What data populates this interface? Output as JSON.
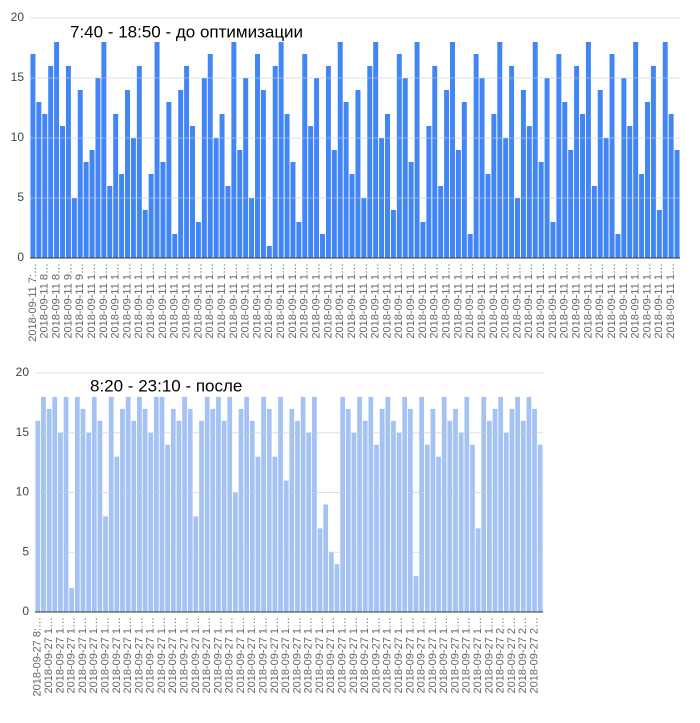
{
  "chart_data": [
    {
      "type": "bar",
      "title": "7:40 - 18:50 - до оптимизации",
      "color": "#4285f4",
      "grid": true,
      "ylim": [
        0,
        20
      ],
      "yticks": [
        0,
        5,
        10,
        15,
        20
      ],
      "categories": [
        "2018-09-11 7:…",
        null,
        "2018-09-11 8…",
        null,
        "2018-09-11 8…",
        null,
        "2018-09-11 9…",
        null,
        "2018-09-11 9…",
        null,
        "2018-09-11 1…",
        null,
        "2018-09-11 1…",
        null,
        "2018-09-11 1…",
        null,
        "2018-09-11 1…",
        null,
        "2018-09-11 1…",
        null,
        "2018-09-11 1…",
        null,
        "2018-09-11 1…",
        null,
        "2018-09-11 1…",
        null,
        "2018-09-11 1…",
        null,
        "2018-09-11 1…",
        null,
        "2018-09-11 1…",
        null,
        "2018-09-11 1…",
        null,
        "2018-09-11 1…",
        null,
        "2018-09-11 1…",
        null,
        "2018-09-11 1…",
        null,
        "2018-09-11 1…",
        null,
        "2018-09-11 1…",
        null,
        "2018-09-11 1…",
        null,
        "2018-09-11 1…",
        null,
        "2018-09-11 1…",
        null,
        "2018-09-11 1…",
        null,
        "2018-09-11 1…",
        null,
        "2018-09-11 1…",
        null,
        "2018-09-11 1…",
        null,
        "2018-09-11 1…",
        null,
        "2018-09-11 1…",
        null,
        "2018-09-11 1…",
        null,
        "2018-09-11 1…",
        null,
        "2018-09-11 1…",
        null,
        "2018-09-11 1…",
        null,
        "2018-09-11 1…",
        null,
        "2018-09-11 1…",
        null,
        "2018-09-11 1…",
        null,
        "2018-09-11 1…",
        null,
        "2018-09-11 1…",
        null,
        "2018-09-11 1…",
        null,
        "2018-09-11 1…",
        null,
        "2018-09-11 1…",
        null,
        "2018-09-11 1…",
        null,
        "2018-09-11 1…",
        null,
        "2018-09-11 1…",
        null,
        "2018-09-11 1…",
        null,
        "2018-09-11 1…",
        null,
        "2018-09-11 1…",
        null,
        "2018-09-11 1…",
        null,
        "2018-09-11 1…",
        null,
        "2018-09-11 1…",
        null,
        "2018-09-11 1…",
        null,
        "2018-09-11 1…",
        null,
        "2018-09-11 1…",
        null
      ],
      "values": [
        17,
        13,
        12,
        16,
        18,
        11,
        16,
        5,
        14,
        8,
        9,
        15,
        18,
        6,
        12,
        7,
        14,
        10,
        16,
        4,
        7,
        18,
        8,
        13,
        2,
        14,
        16,
        11,
        3,
        15,
        17,
        10,
        12,
        6,
        18,
        9,
        15,
        5,
        17,
        14,
        1,
        16,
        18,
        12,
        8,
        3,
        17,
        11,
        15,
        2,
        16,
        9,
        18,
        13,
        7,
        14,
        5,
        16,
        18,
        10,
        12,
        4,
        17,
        15,
        8,
        18,
        3,
        11,
        16,
        6,
        14,
        18,
        9,
        13,
        2,
        17,
        15,
        7,
        12,
        18,
        10,
        16,
        5,
        14,
        11,
        18,
        8,
        15,
        3,
        17,
        13,
        9,
        16,
        12,
        18,
        6,
        14,
        10,
        17,
        2,
        15,
        11,
        18,
        7,
        13,
        16,
        4,
        18,
        12,
        9
      ]
    },
    {
      "type": "bar",
      "title": "8:20 - 23:10 - после",
      "color": "#a4c2f4",
      "grid": true,
      "ylim": [
        0,
        20
      ],
      "yticks": [
        0,
        5,
        10,
        15,
        20
      ],
      "categories": [
        "2018-09-27 8:…",
        null,
        "2018-09-27 1…",
        null,
        "2018-09-27 1…",
        null,
        "2018-09-27 1…",
        null,
        "2018-09-27 1…",
        null,
        "2018-09-27 1…",
        null,
        "2018-09-27 1…",
        null,
        "2018-09-27 1…",
        null,
        "2018-09-27 1…",
        null,
        "2018-09-27 1…",
        null,
        "2018-09-27 1…",
        null,
        "2018-09-27 1…",
        null,
        "2018-09-27 1…",
        null,
        "2018-09-27 1…",
        null,
        "2018-09-27 1…",
        null,
        "2018-09-27 1…",
        null,
        "2018-09-27 1…",
        null,
        "2018-09-27 1…",
        null,
        "2018-09-27 1…",
        null,
        "2018-09-27 1…",
        null,
        "2018-09-27 1…",
        null,
        "2018-09-27 1…",
        null,
        "2018-09-27 1…",
        null,
        "2018-09-27 1…",
        null,
        "2018-09-27 1…",
        null,
        "2018-09-27 1…",
        null,
        "2018-09-27 1…",
        null,
        "2018-09-27 1…",
        null,
        "2018-09-27 1…",
        null,
        "2018-09-27 1…",
        null,
        "2018-09-27 1…",
        null,
        "2018-09-27 1…",
        null,
        "2018-09-27 1…",
        null,
        "2018-09-27 1…",
        null,
        "2018-09-27 1…",
        null,
        "2018-09-27 1…",
        null,
        "2018-09-27 1…",
        null,
        "2018-09-27 1…",
        null,
        "2018-09-27 1…",
        null,
        "2018-09-27 1…",
        null,
        "2018-09-27 1…",
        null,
        "2018-09-27 2…",
        null,
        "2018-09-27 2…",
        null,
        "2018-09-27 2…",
        null,
        "2018-09-27 2…",
        null
      ],
      "values": [
        16,
        18,
        17,
        18,
        15,
        18,
        2,
        18,
        17,
        15,
        18,
        16,
        8,
        18,
        13,
        17,
        18,
        16,
        18,
        17,
        15,
        18,
        18,
        14,
        17,
        16,
        18,
        17,
        8,
        16,
        18,
        17,
        18,
        16,
        18,
        10,
        17,
        18,
        16,
        13,
        18,
        17,
        13,
        18,
        11,
        17,
        16,
        18,
        15,
        18,
        7,
        9,
        5,
        4,
        18,
        17,
        15,
        18,
        16,
        18,
        14,
        17,
        18,
        16,
        15,
        18,
        17,
        3,
        18,
        14,
        17,
        13,
        18,
        16,
        17,
        15,
        18,
        14,
        7,
        18,
        16,
        17,
        18,
        15,
        17,
        18,
        16,
        18,
        17,
        14
      ]
    }
  ]
}
